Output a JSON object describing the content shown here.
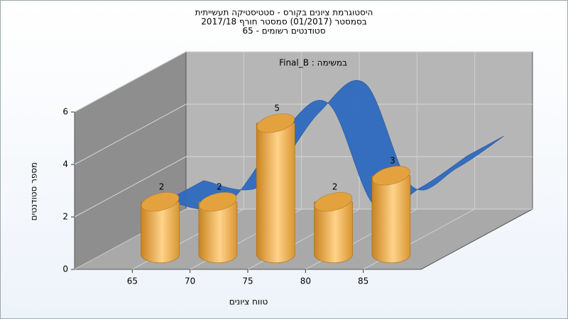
{
  "chart_data": {
    "type": "bar3d",
    "title": [
      "היסטוגרמת ציונים בקורס - סטטיסטיקה תעשייתית",
      "בסמסטר  (01/2017)  סמסטר חורף 2017/18",
      "סטודנטים רשומים - 65"
    ],
    "annotation": "במשימה : Final_B",
    "x_label": "טווח ציונים",
    "y_label": "מספר סטודנטים",
    "x": [
      65,
      70,
      75,
      80,
      85
    ],
    "values": [
      2,
      2,
      5,
      2,
      3
    ],
    "color": "#e9a43c",
    "curve": {
      "color": "#2f6bc0",
      "x": [
        62,
        67,
        72,
        76,
        80,
        84,
        88
      ],
      "values": [
        1.2,
        1.0,
        3.8,
        4.9,
        1.0,
        1.7,
        2.9
      ]
    },
    "xlim": [
      60,
      90
    ],
    "xticks": [
      65,
      70,
      75,
      80,
      85
    ],
    "ylim": [
      0,
      6
    ],
    "yticks": [
      0,
      2,
      4,
      6
    ],
    "grid": true
  }
}
